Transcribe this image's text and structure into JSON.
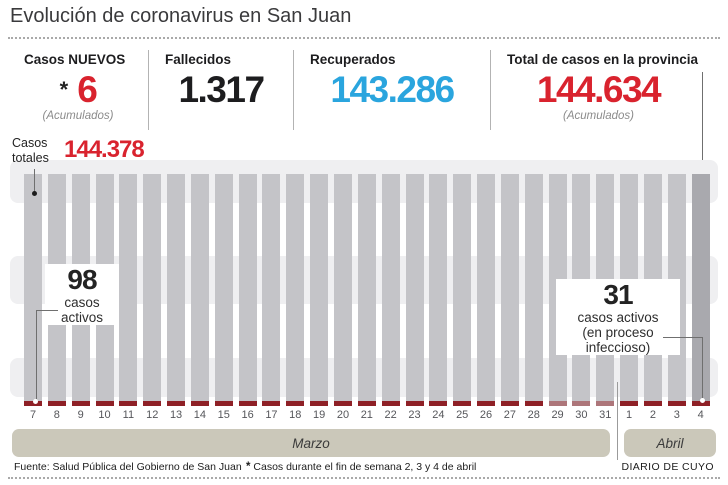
{
  "title": "Evolución de coronavirus en San Juan",
  "colors": {
    "red": "#d9232e",
    "blue": "#2aa5de",
    "dark": "#1d1d1f",
    "bar": "#c4c4c8",
    "bar_highlight": "#a9a9ae",
    "strip": "#8e2026",
    "strip_muted": "#ad767a",
    "band": "#efeff1",
    "month_band": "#cbc8ba"
  },
  "stats": [
    {
      "label": "Casos NUEVOS",
      "prefix": "*",
      "value": "6",
      "note": "(Acumulados)",
      "color_key": "red"
    },
    {
      "label": "Fallecidos",
      "value": "1.317",
      "color_key": "dark"
    },
    {
      "label": "Recuperados",
      "value": "143.286",
      "color_key": "blue"
    },
    {
      "label": "Total de casos en la provincia",
      "value": "144.634",
      "note": "(Acumulados)",
      "color_key": "red"
    }
  ],
  "chart_data": {
    "type": "bar",
    "categories": [
      "7",
      "8",
      "9",
      "10",
      "11",
      "12",
      "13",
      "14",
      "15",
      "16",
      "17",
      "18",
      "19",
      "20",
      "21",
      "22",
      "23",
      "24",
      "25",
      "26",
      "27",
      "28",
      "29",
      "30",
      "31",
      "1",
      "2",
      "3",
      "4"
    ],
    "month_groups": [
      {
        "label": "Marzo",
        "count": 25
      },
      {
        "label": "Abril",
        "count": 4
      }
    ],
    "series": [
      {
        "name": "Casos totales (acumulados)",
        "color": "#c4c4c8",
        "first_labeled_value": 144378,
        "last_labeled_value": 144634
      },
      {
        "name": "Casos activos (en proceso infeccioso)",
        "color": "#8e2026",
        "first_labeled_value": 98,
        "last_labeled_value": 31
      }
    ],
    "muted_strip_categories": [
      "29",
      "30",
      "31"
    ],
    "highlight_last_bar": true,
    "legend_position": "none",
    "y_axis_visible": false,
    "annotations": {
      "totales": {
        "line1": "Casos",
        "line2": "totales",
        "value": "144.378",
        "target": "first-bar-top"
      },
      "active_start": {
        "value": "98",
        "line1": "casos",
        "line2": "activos",
        "target": "first-bar-base"
      },
      "active_end": {
        "value": "31",
        "line1": "casos activos",
        "line2": "(en proceso",
        "line3": "infeccioso)",
        "target": "last-bar-base"
      },
      "total_end": {
        "value": "144.634",
        "target": "last-bar-top"
      }
    }
  },
  "footer": {
    "source": "Fuente: Salud Pública del Gobierno de San Juan",
    "note_mark": "*",
    "note": " Casos durante el fin de semana 2, 3 y 4 de abril",
    "credit": "DIARIO DE CUYO"
  }
}
